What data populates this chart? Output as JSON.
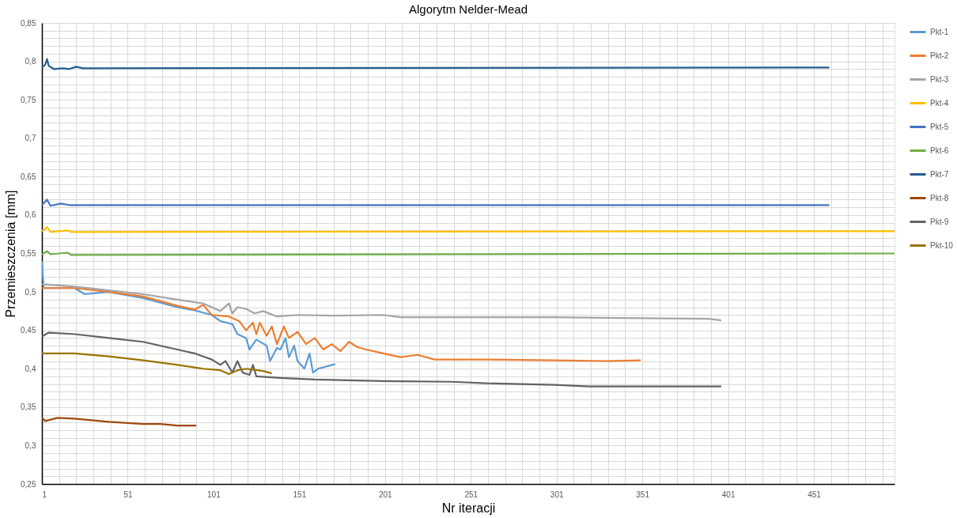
{
  "chart_data": {
    "type": "line",
    "title": "Algorytm Nelder-Mead",
    "xlabel": "Nr iteracji",
    "ylabel": "Przemieszczenia   [mm]",
    "xlim": [
      1,
      498
    ],
    "ylim": [
      0.25,
      0.85
    ],
    "grid": true,
    "legend": "right",
    "line_style": "solid",
    "marker": "none",
    "xticks": [
      1,
      {
        "value": 11,
        "label": null
      },
      {
        "value": 21,
        "label": null
      },
      {
        "value": 31,
        "label": null
      },
      {
        "value": 41,
        "label": null
      },
      51,
      {
        "value": 61,
        "label": null
      },
      {
        "value": 71,
        "label": null
      },
      {
        "value": 81,
        "label": null
      },
      {
        "value": 91,
        "label": null
      },
      101,
      {
        "value": 111,
        "label": null
      },
      {
        "value": 121,
        "label": null
      },
      {
        "value": 131,
        "label": null
      },
      {
        "value": 141,
        "label": null
      },
      151,
      {
        "value": 161,
        "label": null
      },
      {
        "value": 171,
        "label": null
      },
      {
        "value": 181,
        "label": null
      },
      {
        "value": 191,
        "label": null
      },
      201,
      {
        "value": 211,
        "label": null
      },
      {
        "value": 221,
        "label": null
      },
      {
        "value": 231,
        "label": null
      },
      {
        "value": 241,
        "label": null
      },
      251,
      {
        "value": 261,
        "label": null
      },
      {
        "value": 271,
        "label": null
      },
      {
        "value": 281,
        "label": null
      },
      {
        "value": 291,
        "label": null
      },
      301,
      {
        "value": 311,
        "label": null
      },
      {
        "value": 321,
        "label": null
      },
      {
        "value": 331,
        "label": null
      },
      {
        "value": 341,
        "label": null
      },
      351,
      {
        "value": 361,
        "label": null
      },
      {
        "value": 371,
        "label": null
      },
      {
        "value": 381,
        "label": null
      },
      {
        "value": 391,
        "label": null
      },
      401,
      {
        "value": 411,
        "label": null
      },
      {
        "value": 421,
        "label": null
      },
      {
        "value": 431,
        "label": null
      },
      {
        "value": 441,
        "label": null
      },
      451,
      {
        "value": 461,
        "label": null
      },
      {
        "value": 471,
        "label": null
      },
      {
        "value": 481,
        "label": null
      },
      {
        "value": 491,
        "label": null
      }
    ],
    "yticks": [
      {
        "value": 0.25,
        "label": "0,25"
      },
      {
        "value": 0.26,
        "label": null
      },
      {
        "value": 0.27,
        "label": null
      },
      {
        "value": 0.28,
        "label": null
      },
      {
        "value": 0.29,
        "label": null
      },
      {
        "value": 0.3,
        "label": "0,3"
      },
      {
        "value": 0.31,
        "label": null
      },
      {
        "value": 0.32,
        "label": null
      },
      {
        "value": 0.33,
        "label": null
      },
      {
        "value": 0.34,
        "label": null
      },
      {
        "value": 0.35,
        "label": "0,35"
      },
      {
        "value": 0.36,
        "label": null
      },
      {
        "value": 0.37,
        "label": null
      },
      {
        "value": 0.38,
        "label": null
      },
      {
        "value": 0.39,
        "label": null
      },
      {
        "value": 0.4,
        "label": "0,4"
      },
      {
        "value": 0.41,
        "label": null
      },
      {
        "value": 0.42,
        "label": null
      },
      {
        "value": 0.43,
        "label": null
      },
      {
        "value": 0.44,
        "label": null
      },
      {
        "value": 0.45,
        "label": "0,45"
      },
      {
        "value": 0.46,
        "label": null
      },
      {
        "value": 0.47,
        "label": null
      },
      {
        "value": 0.48,
        "label": null
      },
      {
        "value": 0.49,
        "label": null
      },
      {
        "value": 0.5,
        "label": "0,5"
      },
      {
        "value": 0.51,
        "label": null
      },
      {
        "value": 0.52,
        "label": null
      },
      {
        "value": 0.53,
        "label": null
      },
      {
        "value": 0.54,
        "label": null
      },
      {
        "value": 0.55,
        "label": "0,55"
      },
      {
        "value": 0.56,
        "label": null
      },
      {
        "value": 0.57,
        "label": null
      },
      {
        "value": 0.58,
        "label": null
      },
      {
        "value": 0.59,
        "label": null
      },
      {
        "value": 0.6,
        "label": "0,6"
      },
      {
        "value": 0.61,
        "label": null
      },
      {
        "value": 0.62,
        "label": null
      },
      {
        "value": 0.63,
        "label": null
      },
      {
        "value": 0.64,
        "label": null
      },
      {
        "value": 0.65,
        "label": "0,65"
      },
      {
        "value": 0.66,
        "label": null
      },
      {
        "value": 0.67,
        "label": null
      },
      {
        "value": 0.68,
        "label": null
      },
      {
        "value": 0.69,
        "label": null
      },
      {
        "value": 0.7,
        "label": "0,7"
      },
      {
        "value": 0.71,
        "label": null
      },
      {
        "value": 0.72,
        "label": null
      },
      {
        "value": 0.73,
        "label": null
      },
      {
        "value": 0.74,
        "label": null
      },
      {
        "value": 0.75,
        "label": "0,75"
      },
      {
        "value": 0.76,
        "label": null
      },
      {
        "value": 0.77,
        "label": null
      },
      {
        "value": 0.78,
        "label": null
      },
      {
        "value": 0.79,
        "label": null
      },
      {
        "value": 0.8,
        "label": "0,8"
      },
      {
        "value": 0.81,
        "label": null
      },
      {
        "value": 0.82,
        "label": null
      },
      {
        "value": 0.83,
        "label": null
      },
      {
        "value": 0.84,
        "label": null
      },
      {
        "value": 0.85,
        "label": "0,85"
      }
    ],
    "series": [
      {
        "name": "Pkt-1",
        "color": "#5b9bd5",
        "x": [
          1,
          2,
          20,
          26,
          40,
          60,
          80,
          90,
          100,
          105,
          112,
          115,
          120,
          122,
          126,
          132,
          134,
          138,
          140,
          143,
          145,
          148,
          150,
          154,
          157,
          159,
          162,
          172
        ],
        "values": [
          0.54,
          0.505,
          0.505,
          0.497,
          0.5,
          0.492,
          0.48,
          0.476,
          0.47,
          0.462,
          0.458,
          0.445,
          0.44,
          0.425,
          0.438,
          0.43,
          0.41,
          0.427,
          0.425,
          0.44,
          0.415,
          0.43,
          0.41,
          0.4,
          0.42,
          0.395,
          0.4,
          0.406
        ]
      },
      {
        "name": "Pkt-2",
        "color": "#ed7d31",
        "x": [
          1,
          20,
          40,
          60,
          80,
          90,
          95,
          100,
          110,
          116,
          120,
          124,
          126,
          128,
          132,
          135,
          138,
          142,
          145,
          150,
          155,
          160,
          165,
          170,
          175,
          180,
          185,
          190,
          200,
          210,
          220,
          230,
          260,
          300,
          330,
          350
        ],
        "values": [
          0.505,
          0.505,
          0.5,
          0.494,
          0.482,
          0.477,
          0.483,
          0.47,
          0.468,
          0.462,
          0.45,
          0.46,
          0.445,
          0.46,
          0.443,
          0.455,
          0.432,
          0.455,
          0.44,
          0.448,
          0.432,
          0.44,
          0.425,
          0.432,
          0.423,
          0.435,
          0.428,
          0.425,
          0.42,
          0.415,
          0.418,
          0.412,
          0.412,
          0.411,
          0.41,
          0.411
        ]
      },
      {
        "name": "Pkt-3",
        "color": "#a5a5a5",
        "x": [
          1,
          20,
          40,
          60,
          80,
          95,
          105,
          110,
          112,
          115,
          120,
          125,
          130,
          138,
          150,
          170,
          200,
          210,
          250,
          300,
          340,
          390,
          397
        ],
        "values": [
          0.51,
          0.507,
          0.502,
          0.497,
          0.49,
          0.485,
          0.475,
          0.485,
          0.472,
          0.48,
          0.478,
          0.472,
          0.475,
          0.468,
          0.47,
          0.469,
          0.47,
          0.467,
          0.467,
          0.467,
          0.466,
          0.465,
          0.463
        ]
      },
      {
        "name": "Pkt-4",
        "color": "#ffc000",
        "x": [
          1,
          4,
          6,
          16,
          18,
          498
        ],
        "values": [
          0.579,
          0.584,
          0.578,
          0.58,
          0.578,
          0.579
        ]
      },
      {
        "name": "Pkt-5",
        "color": "#4472c4",
        "x": [
          1,
          4,
          6,
          12,
          17,
          460
        ],
        "values": [
          0.613,
          0.62,
          0.612,
          0.615,
          0.613,
          0.613
        ]
      },
      {
        "name": "Pkt-6",
        "color": "#70ad47",
        "x": [
          1,
          4,
          6,
          16,
          18,
          498
        ],
        "values": [
          0.549,
          0.553,
          0.549,
          0.551,
          0.548,
          0.55
        ]
      },
      {
        "name": "Pkt-7",
        "color": "#255e91",
        "x": [
          1,
          3,
          4,
          5,
          8,
          13,
          17,
          21,
          25,
          460
        ],
        "values": [
          0.792,
          0.796,
          0.803,
          0.794,
          0.79,
          0.791,
          0.79,
          0.793,
          0.791,
          0.792
        ]
      },
      {
        "name": "Pkt-8",
        "color": "#9e480e",
        "x": [
          1,
          3,
          10,
          20,
          40,
          60,
          70,
          80,
          91
        ],
        "values": [
          0.336,
          0.332,
          0.336,
          0.335,
          0.331,
          0.328,
          0.328,
          0.326,
          0.326
        ]
      },
      {
        "name": "Pkt-9",
        "color": "#636363",
        "x": [
          1,
          5,
          20,
          40,
          60,
          80,
          90,
          100,
          105,
          108,
          112,
          115,
          118,
          122,
          124,
          126,
          140,
          160,
          200,
          240,
          260,
          300,
          320,
          397
        ],
        "values": [
          0.442,
          0.447,
          0.445,
          0.44,
          0.435,
          0.425,
          0.42,
          0.412,
          0.405,
          0.41,
          0.395,
          0.41,
          0.395,
          0.392,
          0.405,
          0.39,
          0.388,
          0.386,
          0.384,
          0.383,
          0.381,
          0.379,
          0.377,
          0.377
        ]
      },
      {
        "name": "Pkt-10",
        "color": "#997300",
        "x": [
          1,
          20,
          40,
          60,
          80,
          95,
          105,
          110,
          115,
          120,
          130,
          135
        ],
        "values": [
          0.42,
          0.42,
          0.416,
          0.411,
          0.405,
          0.4,
          0.398,
          0.393,
          0.398,
          0.4,
          0.397,
          0.394
        ]
      }
    ]
  }
}
